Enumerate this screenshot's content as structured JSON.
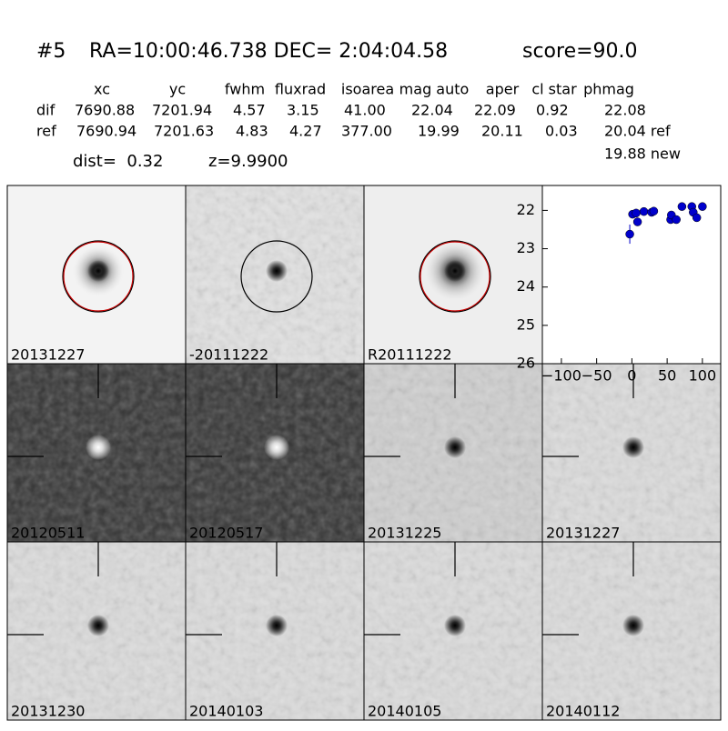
{
  "header": {
    "id": "#5",
    "coords": "RA=10:00:46.738 DEC= 2:04:04.58",
    "score": "score=90.0"
  },
  "table": {
    "columns": [
      "xc",
      "yc",
      "fwhm",
      "fluxrad",
      "isoarea",
      "mag auto",
      "aper",
      "cl star",
      "phmag"
    ],
    "rows": [
      {
        "label": "dif",
        "cells": [
          "7690.88",
          "7201.94",
          "4.57",
          "3.15",
          "41.00",
          "22.04",
          "22.09",
          "0.92",
          "22.08"
        ]
      },
      {
        "label": "ref",
        "cells": [
          "7690.94",
          "7201.63",
          "4.83",
          "4.27",
          "377.00",
          "19.99",
          "20.11",
          "0.03",
          "20.04 ref"
        ]
      }
    ],
    "extra": "19.88 new"
  },
  "dist": "dist=  0.32",
  "z": "z=9.9900",
  "panels": [
    {
      "label": "20131227"
    },
    {
      "label": "-20111222"
    },
    {
      "label": "R20111222"
    },
    {
      "label": "20120511"
    },
    {
      "label": "20120517"
    },
    {
      "label": "20131225"
    },
    {
      "label": "20131227",
      "label_color": "#ff0000"
    },
    {
      "label": "20131230"
    },
    {
      "label": "20140103"
    },
    {
      "label": "20140105"
    },
    {
      "label": "20140112"
    }
  ],
  "chart_data": {
    "type": "scatter",
    "color": "#0000cc",
    "x": [
      -3,
      1,
      6,
      8,
      17,
      28,
      31,
      55,
      56,
      63,
      71,
      85,
      87,
      92,
      100
    ],
    "y": [
      22.62,
      22.1,
      22.07,
      22.3,
      22.03,
      22.05,
      22.02,
      22.24,
      22.12,
      22.24,
      21.9,
      21.9,
      22.05,
      22.19,
      21.9
    ],
    "errors": [
      0.25,
      0.08,
      0.05,
      0.08,
      0.05,
      0.05,
      0.05,
      0.08,
      0.08,
      0.06,
      0.04,
      0.04,
      0.06,
      0.08,
      0.04
    ],
    "xlim": [
      -127,
      126
    ],
    "ylim": [
      26,
      21.35
    ],
    "xticks": [
      {
        "value": -100,
        "label": "−100"
      },
      {
        "value": -50,
        "label": "−50"
      },
      0,
      50,
      100
    ],
    "yticks": [
      22,
      23,
      24,
      25,
      26
    ]
  }
}
